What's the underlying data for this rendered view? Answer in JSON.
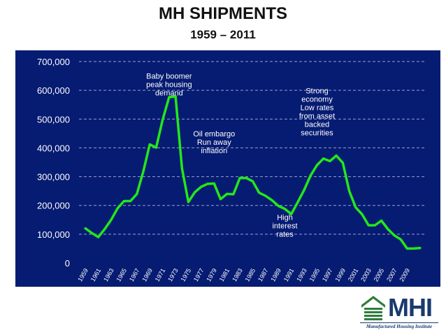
{
  "slide": {
    "title": "MH SHIPMENTS",
    "subtitle": "1959 – 2011"
  },
  "colors": {
    "plot_background": "#061b72",
    "line": "#22e81a",
    "text": "#ffffff",
    "grid": "#9aa3c8",
    "logo_green": "#2f7d3a",
    "logo_blue": "#1a3a6e"
  },
  "logo": {
    "text": "MHI",
    "caption": "Manufactured Housing Institute"
  },
  "chart_data": {
    "type": "line",
    "title": "",
    "xlabel": "",
    "ylabel": "",
    "ylim": [
      0,
      700000
    ],
    "grid": "horizontal-dashed",
    "y_ticks": [
      0,
      100000,
      200000,
      300000,
      400000,
      500000,
      600000,
      700000
    ],
    "y_tick_labels": [
      "0",
      "100,000",
      "200,000",
      "300,000",
      "400,000",
      "500,000",
      "600,000",
      "700,000"
    ],
    "x_tick_labels": [
      "1959",
      "1961",
      "1963",
      "1965",
      "1967",
      "1969",
      "1971",
      "1973",
      "1975",
      "1977",
      "1979",
      "1981",
      "1983",
      "1985",
      "1987",
      "1989",
      "1991",
      "1993",
      "1995",
      "1997",
      "1999",
      "2001",
      "2003",
      "2005",
      "2007",
      "2009"
    ],
    "series": [
      {
        "x": [
          1959,
          1960,
          1961,
          1962,
          1963,
          1964,
          1965,
          1966,
          1967,
          1968,
          1969,
          1970,
          1971,
          1972,
          1973,
          1974,
          1975,
          1976,
          1977,
          1978,
          1979,
          1980,
          1981,
          1982,
          1983,
          1984,
          1985,
          1986,
          1987,
          1988,
          1989,
          1990,
          1991,
          1992,
          1993,
          1994,
          1995,
          1996,
          1997,
          1998,
          1999,
          2000,
          2001,
          2002,
          2003,
          2004,
          2005,
          2006,
          2007,
          2008,
          2009,
          2010,
          2011
        ],
        "values": [
          120000,
          104000,
          90000,
          118000,
          150000,
          190000,
          215000,
          215000,
          240000,
          318000,
          412000,
          401000,
          497000,
          576000,
          579000,
          329000,
          212000,
          246000,
          265000,
          275000,
          276000,
          222000,
          240000,
          239000,
          295000,
          295000,
          284000,
          244000,
          233000,
          218000,
          198000,
          188000,
          170000,
          211000,
          254000,
          304000,
          340000,
          363000,
          354000,
          373000,
          348000,
          250000,
          193000,
          169000,
          131000,
          131000,
          147000,
          118000,
          96000,
          82000,
          50000,
          50000,
          52000
        ]
      }
    ],
    "annotations": [
      {
        "lines": [
          "Baby boomer",
          "peak housing",
          "demand"
        ],
        "x": 1972,
        "y": 640000
      },
      {
        "lines": [
          "Oil embargo",
          "Run away",
          "inflation"
        ],
        "x": 1979,
        "y": 440000
      },
      {
        "lines": [
          "High",
          "interest",
          "rates"
        ],
        "x": 1990,
        "y": 150000
      },
      {
        "lines": [
          "Strong",
          "economy",
          "Low rates",
          "from asset",
          "backed",
          "securities"
        ],
        "x": 1995,
        "y": 590000
      }
    ]
  }
}
